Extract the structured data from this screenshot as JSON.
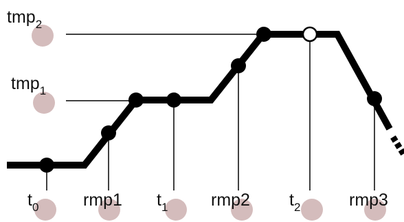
{
  "colors": {
    "profile": "#000000",
    "guide": "#000000",
    "marker_fill": "#000000",
    "open_marker_fill": "#ffffff",
    "bubble": "#d4bcbc",
    "text": "#111111"
  },
  "labels": {
    "tmp2": {
      "base": "tmp",
      "sub": "2"
    },
    "tmp1": {
      "base": "tmp",
      "sub": "1"
    },
    "t0": {
      "base": "t",
      "sub": "0"
    },
    "rmp1": {
      "base": "rmp1",
      "sub": ""
    },
    "t1": {
      "base": "t",
      "sub": "1"
    },
    "rmp2": {
      "base": "rmp2",
      "sub": ""
    },
    "t2": {
      "base": "t",
      "sub": "2"
    },
    "rmp3": {
      "base": "rmp3",
      "sub": ""
    }
  }
}
